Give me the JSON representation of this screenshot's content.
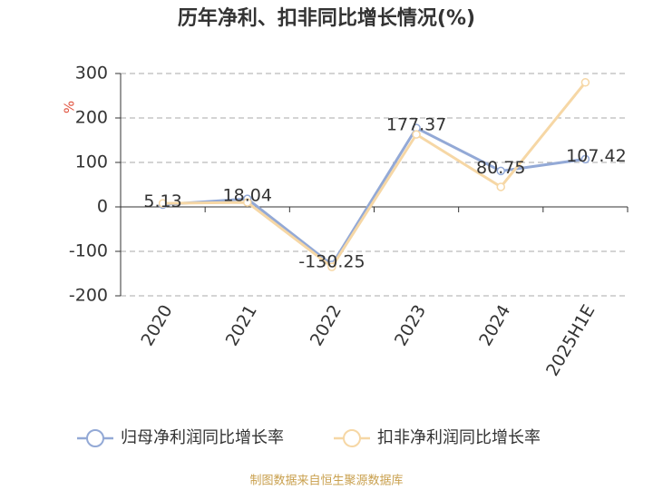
{
  "chart_data": {
    "type": "line",
    "title": "历年净利、扣非同比增长情况(%)",
    "y_label": "%",
    "categories": [
      "2020",
      "2021",
      "2022",
      "2023",
      "2024",
      "2025H1E"
    ],
    "series": [
      {
        "name": "归母净利润同比增长率",
        "color": "#93a9d6",
        "values": [
          5.13,
          18.04,
          -130.25,
          177.37,
          80.75,
          107.42
        ]
      },
      {
        "name": "扣非净利润同比增长率",
        "color": "#f6d7a5",
        "values": [
          8,
          10,
          -135,
          163,
          45,
          280
        ]
      }
    ],
    "ylim": [
      -200,
      300
    ],
    "yticks": [
      -200,
      -100,
      0,
      100,
      200,
      300
    ],
    "grid": true,
    "source": "制图数据来自恒生聚源数据库"
  }
}
